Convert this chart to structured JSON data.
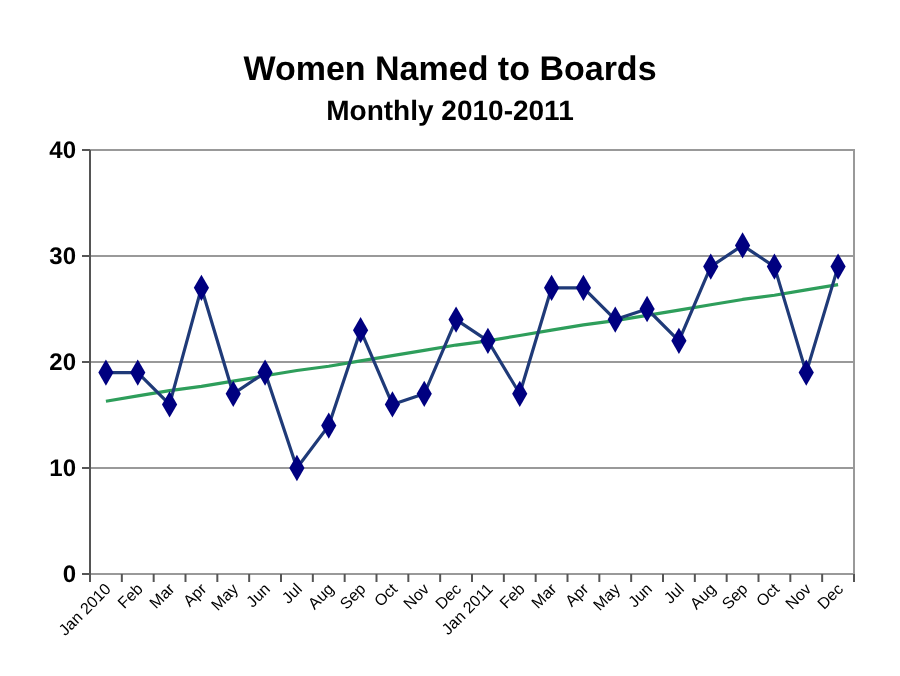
{
  "chart_data": {
    "type": "line",
    "title": "Women Named to Boards",
    "subtitle": "Monthly 2010-2011",
    "categories": [
      "Jan 2010",
      "Feb",
      "Mar",
      "Apr",
      "May",
      "Jun",
      "Jul",
      "Aug",
      "Sep",
      "Oct",
      "Nov",
      "Dec",
      "Jan 2011",
      "Feb",
      "Mar",
      "Apr",
      "May",
      "Jun",
      "Jul",
      "Aug",
      "Sep",
      "Oct",
      "Nov",
      "Dec"
    ],
    "series": [
      {
        "color": "#000080",
        "marker": "diamond",
        "values": [
          19,
          19,
          16,
          27,
          17,
          19,
          10,
          14,
          23,
          16,
          17,
          24,
          22,
          17,
          27,
          27,
          24,
          25,
          22,
          29,
          31,
          29,
          19,
          29
        ]
      },
      {
        "type": "line",
        "color": "#2e9e5b",
        "marker": "none",
        "values": [
          16.3,
          16.8,
          17.3,
          17.7,
          18.2,
          18.7,
          19.2,
          19.6,
          20.1,
          20.6,
          21.1,
          21.6,
          22.0,
          22.5,
          23.0,
          23.5,
          23.9,
          24.4,
          24.9,
          25.4,
          25.9,
          26.3,
          26.8,
          27.3
        ]
      }
    ],
    "ylim": [
      0,
      40
    ],
    "yticks": [
      0,
      10,
      20,
      30,
      40
    ],
    "grid": "y"
  }
}
